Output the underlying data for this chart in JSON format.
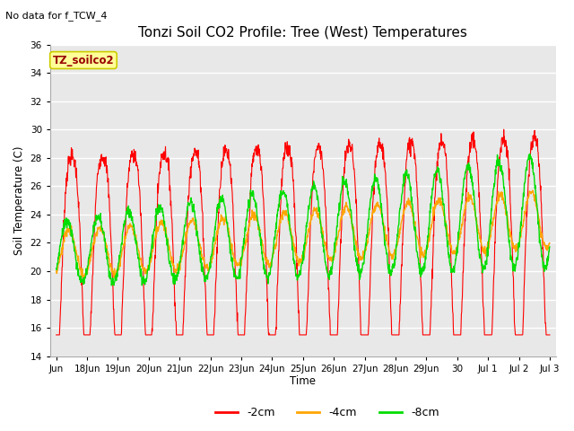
{
  "title": "Tonzi Soil CO2 Profile: Tree (West) Temperatures",
  "subtitle": "No data for f_TCW_4",
  "ylabel": "Soil Temperature (C)",
  "xlabel": "Time",
  "ylim": [
    14,
    36
  ],
  "yticks": [
    14,
    16,
    18,
    20,
    22,
    24,
    26,
    28,
    30,
    32,
    34,
    36
  ],
  "xtick_labels": [
    "Jun",
    "18Jun",
    "19Jun",
    "20Jun",
    "21Jun",
    "22Jun",
    "23Jun",
    "24Jun",
    "25Jun",
    "26Jun",
    "27Jun",
    "28Jun",
    "29Jun",
    "30",
    "Jul 1",
    "Jul 2",
    "Jul 3"
  ],
  "line_colors": [
    "#ff0000",
    "#ffa500",
    "#00dd00"
  ],
  "line_labels": [
    "-2cm",
    "-4cm",
    "-8cm"
  ],
  "legend_box_facecolor": "#ffff99",
  "legend_box_edgecolor": "#cccc00",
  "legend_text": "TZ_soilco2",
  "fig_bg_color": "#ffffff",
  "plot_bg_color": "#e8e8e8",
  "grid_color": "#ffffff"
}
